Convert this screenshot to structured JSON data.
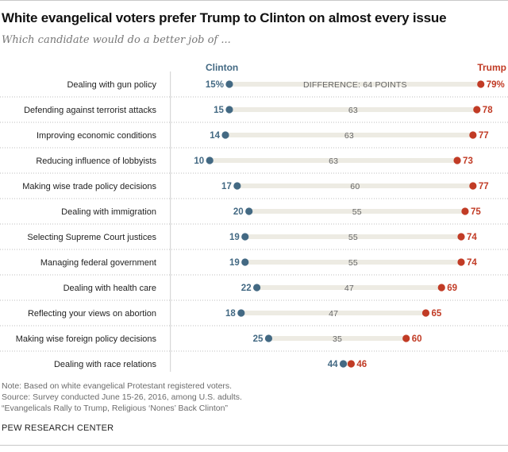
{
  "title": "White evangelical voters prefer Trump to Clinton on almost every issue",
  "subtitle": "Which candidate would do a better job of ...",
  "notes": {
    "note": "Note: Based on white evangelical Protestant registered voters.",
    "source": "Source: Survey conducted June 15-26, 2016, among U.S. adults.",
    "report": "“Evangelicals Rally to Trump, Religious ‘Nones’ Back Clinton”"
  },
  "org": "PEW RESEARCH CENTER",
  "colors": {
    "clinton": "#436983",
    "trump": "#C13B25",
    "bar": "#EDEBE3",
    "diff_text": "#666666"
  },
  "chart_data": {
    "type": "dot-plot",
    "title": "White evangelical voters prefer Trump to Clinton on almost every issue",
    "subtitle": "Which candidate would do a better job of ...",
    "unit": "%",
    "xlim": [
      0,
      100
    ],
    "difference_label_prefix": "DIFFERENCE: ",
    "difference_label_suffix": " POINTS",
    "series": [
      {
        "name": "Clinton",
        "values": [
          15,
          15,
          14,
          10,
          17,
          20,
          19,
          19,
          22,
          18,
          25,
          44
        ]
      },
      {
        "name": "Trump",
        "values": [
          79,
          78,
          77,
          73,
          77,
          75,
          74,
          74,
          69,
          65,
          60,
          46
        ]
      }
    ],
    "differences": [
      64,
      63,
      63,
      63,
      60,
      55,
      55,
      55,
      47,
      47,
      35,
      null
    ],
    "categories": [
      "Dealing with gun policy",
      "Defending against terrorist attacks",
      "Improving economic conditions",
      "Reducing influence of lobbyists",
      "Making wise trade policy decisions",
      "Dealing with immigration",
      "Selecting Supreme Court justices",
      "Managing federal government",
      "Dealing with health care",
      "Reflecting your views on abortion",
      "Making wise foreign policy decisions",
      "Dealing with race relations"
    ]
  }
}
